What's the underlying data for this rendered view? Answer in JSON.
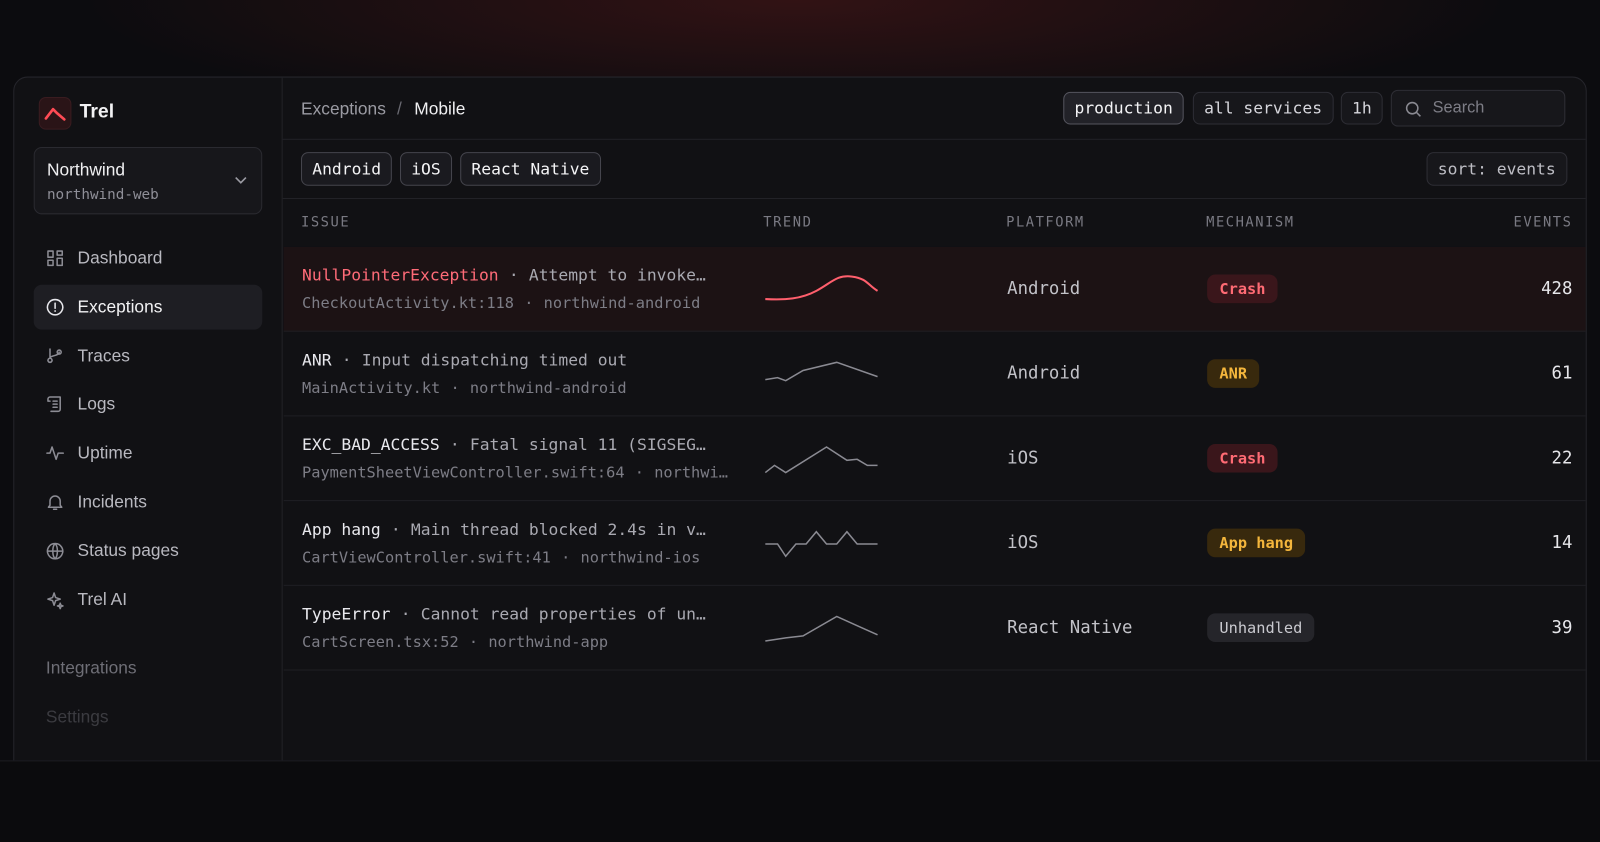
{
  "app": {
    "name": "Trel"
  },
  "workspace": {
    "name": "Northwind",
    "project": "northwind-web"
  },
  "nav": [
    "Dashboard",
    "Exceptions",
    "Traces",
    "Logs",
    "Uptime",
    "Incidents",
    "Status pages",
    "Trel AI"
  ],
  "active_nav": 1,
  "nav_secondary": [
    "Integrations",
    "Settings"
  ],
  "breadcrumb": [
    "Exceptions",
    "Mobile"
  ],
  "breadcrumb_separator": "/",
  "header_filters": [
    "production",
    "all services",
    "1h"
  ],
  "active_header_filter": 0,
  "search_placeholder": "Search",
  "platform_filters": [
    "Android",
    "iOS",
    "React Native"
  ],
  "sort": "sort: events",
  "separator": "·",
  "table": {
    "columns": [
      "ISSUE",
      "TREND",
      "PLATFORM",
      "MECHANISM",
      "EVENTS"
    ],
    "rows": [
      {
        "type": "NullPointerException",
        "message": "Attempt to invoke…",
        "location": "CheckoutActivity.kt:118",
        "service": "northwind-android",
        "platform": "Android",
        "mechanism": "Crash",
        "events": 428
      },
      {
        "type": "ANR",
        "message": "Input dispatching timed out",
        "location": "MainActivity.kt",
        "service": "northwind-android",
        "platform": "Android",
        "mechanism": "ANR",
        "events": 61
      },
      {
        "type": "EXC_BAD_ACCESS",
        "message": "Fatal signal 11 (SIGSEG…",
        "location": "PaymentSheetViewController.swift:64",
        "service": "northwi…",
        "platform": "iOS",
        "mechanism": "Crash",
        "events": 22
      },
      {
        "type": "App hang",
        "message": "Main thread blocked 2.4s in v…",
        "location": "CartViewController.swift:41",
        "service": "northwind-ios",
        "platform": "iOS",
        "mechanism": "App hang",
        "events": 14
      },
      {
        "type": "TypeError",
        "message": "Cannot read properties of un…",
        "location": "CartScreen.tsx:52",
        "service": "northwind-app",
        "platform": "React Native",
        "mechanism": "Unhandled",
        "events": 39
      }
    ]
  }
}
